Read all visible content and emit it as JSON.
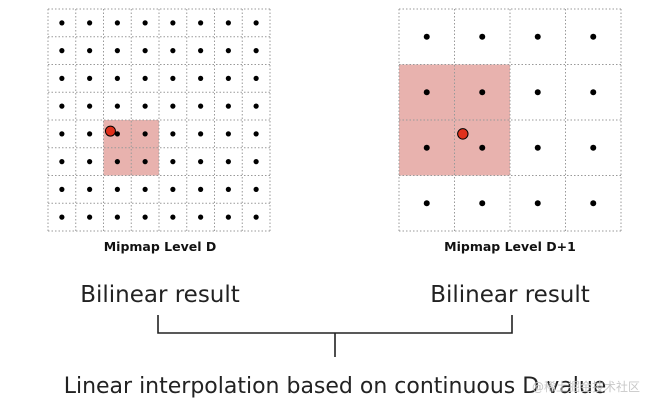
{
  "left_panel": {
    "caption": "Mipmap Level D",
    "grid_size": 8,
    "highlight_cells": {
      "col_start": 2,
      "row_start": 4,
      "cols": 2,
      "rows": 2
    },
    "sample_point": {
      "col": 2.25,
      "row": 4.4
    }
  },
  "right_panel": {
    "caption": "Mipmap Level D+1",
    "grid_size": 4,
    "highlight_cells": {
      "col_start": 0,
      "row_start": 1,
      "cols": 2,
      "rows": 2
    },
    "sample_point": {
      "col": 1.15,
      "row": 2.25
    }
  },
  "labels": {
    "left_result": "Bilinear result",
    "right_result": "Bilinear result",
    "bottom": "Linear interpolation based on continuous D value"
  },
  "watermark": "@稀土掘金技术社区",
  "colors": {
    "highlight_fill": "#e8b2ae",
    "sample_fill": "#e0301c",
    "dot": "#000000",
    "grid_line": "#999999"
  }
}
